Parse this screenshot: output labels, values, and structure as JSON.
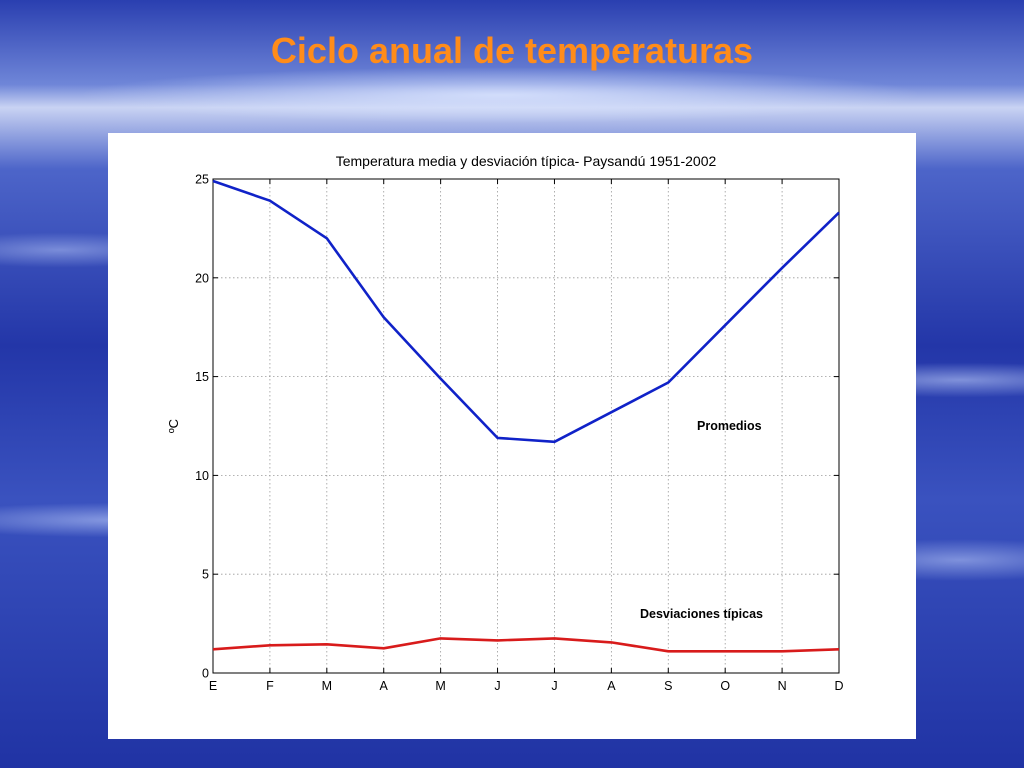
{
  "slide": {
    "title": "Ciclo anual de temperaturas"
  },
  "colors": {
    "title": "#ff8c1a",
    "mean_line": "#1022c8",
    "std_line": "#d81b1b"
  },
  "chart_data": {
    "type": "line",
    "title": "Temperatura media y desviación típica- Paysandú 1951-2002",
    "xlabel": "",
    "ylabel": "ºC",
    "categories": [
      "E",
      "F",
      "M",
      "A",
      "M",
      "J",
      "J",
      "A",
      "S",
      "O",
      "N",
      "D"
    ],
    "ylim": [
      0,
      25
    ],
    "yticks": [
      0,
      5,
      10,
      15,
      20,
      25
    ],
    "grid": true,
    "series": [
      {
        "name": "Promedios",
        "values": [
          24.9,
          23.9,
          22.0,
          18.0,
          14.9,
          11.9,
          11.7,
          13.2,
          14.7,
          17.6,
          20.5,
          23.3
        ]
      },
      {
        "name": "Desviaciones típicas",
        "values": [
          1.2,
          1.4,
          1.45,
          1.25,
          1.75,
          1.65,
          1.75,
          1.55,
          1.1,
          1.1,
          1.1,
          1.2
        ]
      }
    ]
  }
}
